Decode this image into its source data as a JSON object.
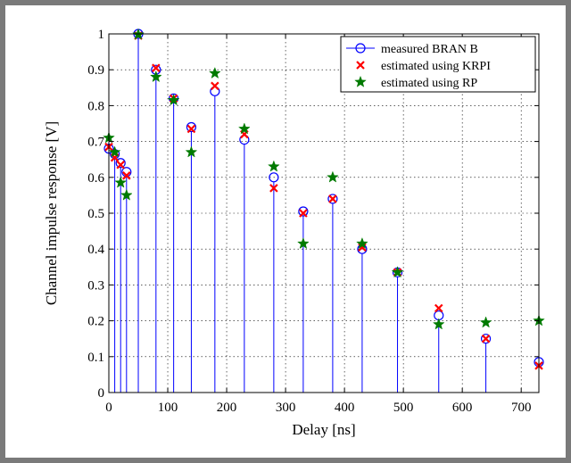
{
  "chart_data": {
    "type": "scatter",
    "xlabel": "Delay [ns]",
    "ylabel": "Channel impulse response [V]",
    "xlim": [
      0,
      730
    ],
    "ylim": [
      0,
      1
    ],
    "xticks": [
      0,
      100,
      200,
      300,
      400,
      500,
      600,
      700
    ],
    "yticks": [
      0,
      0.1,
      0.2,
      0.3,
      0.4,
      0.5,
      0.6,
      0.7,
      0.8,
      0.9,
      1
    ],
    "grid": true,
    "legend_position": "top-right",
    "series": [
      {
        "name": "measured BRAN B",
        "marker": "circle-stem",
        "color": "#0000ff",
        "x": [
          0,
          10,
          20,
          30,
          50,
          80,
          110,
          140,
          180,
          230,
          280,
          330,
          380,
          430,
          490,
          560,
          640,
          730
        ],
        "y": [
          0.68,
          0.665,
          0.64,
          0.615,
          1.0,
          0.9,
          0.82,
          0.74,
          0.84,
          0.705,
          0.6,
          0.505,
          0.54,
          0.4,
          0.335,
          0.215,
          0.15,
          0.085
        ]
      },
      {
        "name": "estimated using KRPI",
        "marker": "x",
        "color": "#ff0000",
        "x": [
          0,
          10,
          20,
          30,
          50,
          80,
          110,
          140,
          180,
          230,
          280,
          330,
          380,
          430,
          490,
          560,
          640,
          730
        ],
        "y": [
          0.685,
          0.655,
          0.635,
          0.605,
          0.995,
          0.905,
          0.82,
          0.735,
          0.855,
          0.72,
          0.57,
          0.5,
          0.54,
          0.405,
          0.335,
          0.235,
          0.15,
          0.075
        ]
      },
      {
        "name": "estimated using RP",
        "marker": "star",
        "color": "#007a00",
        "x": [
          0,
          10,
          20,
          30,
          50,
          80,
          110,
          140,
          180,
          230,
          280,
          330,
          380,
          430,
          490,
          560,
          640,
          730
        ],
        "y": [
          0.71,
          0.67,
          0.585,
          0.55,
          0.998,
          0.88,
          0.815,
          0.67,
          0.89,
          0.735,
          0.63,
          0.415,
          0.6,
          0.415,
          0.335,
          0.19,
          0.195,
          0.2
        ]
      }
    ]
  }
}
